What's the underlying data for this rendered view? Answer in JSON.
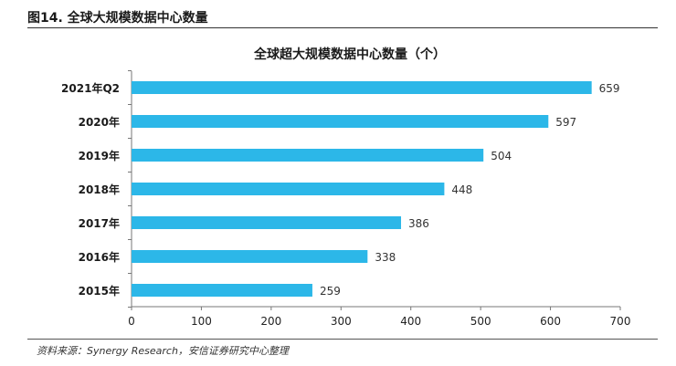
{
  "figure": {
    "caption": "图14. 全球大规模数据中心数量",
    "source": "资料来源：Synergy Research，安信证券研究中心整理"
  },
  "chart_data": {
    "type": "bar",
    "orientation": "horizontal",
    "title": "全球超大规模数据中心数量（个）",
    "categories": [
      "2021年Q2",
      "2020年",
      "2019年",
      "2018年",
      "2017年",
      "2016年",
      "2015年"
    ],
    "values": [
      659,
      597,
      504,
      448,
      386,
      338,
      259
    ],
    "xlim": [
      0,
      700
    ],
    "xticks": [
      0,
      100,
      200,
      300,
      400,
      500,
      600,
      700
    ],
    "bar_color": "#2cb7e8",
    "grid": false,
    "data_labels": true
  }
}
